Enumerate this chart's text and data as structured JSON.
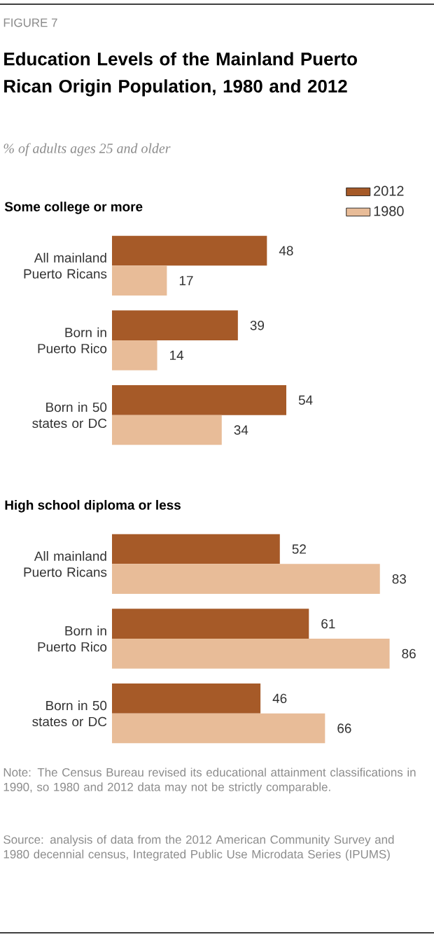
{
  "chart_data": [
    {
      "type": "other",
      "title": "Education Levels of the Mainland Puerto Rican Origin Population, 1980 and 2012",
      "subtitle": "% of adults ages 25 and older",
      "annotations": [
        "FIGURE 7"
      ]
    },
    {
      "type": "bar",
      "orientation": "horizontal",
      "title": "Some college or more",
      "categories": [
        "All mainland Puerto Ricans",
        "Born in Puerto Rico",
        "Born in 50 states or DC"
      ],
      "series": [
        {
          "name": "2012",
          "color": "#a65a28",
          "values": [
            48,
            39,
            54
          ]
        },
        {
          "name": "1980",
          "color": "#e8bc98",
          "values": [
            17,
            14,
            34
          ]
        }
      ],
      "data_labels": true,
      "legend": "top right",
      "tick_labels": "y",
      "grid": false
    },
    {
      "type": "bar",
      "orientation": "horizontal",
      "title": "High school diploma  or less",
      "categories": [
        "All mainland Puerto Ricans",
        "Born in Puerto Rico",
        "Born in 50 states or DC"
      ],
      "series": [
        {
          "color": "#a65a28",
          "values": [
            52,
            61,
            46
          ]
        },
        {
          "color": "#e8bc98",
          "values": [
            83,
            86,
            66
          ]
        }
      ],
      "data_labels": true,
      "legend": false,
      "tick_labels": "y",
      "grid": false,
      "annotations": [
        "Note: The Census Bureau revised its educational attainment classifications in 1990, so 1980 and 2012 data may not be strictly comparable.",
        "Source: analysis of data from the 2012 American Community Survey and 1980 decennial census, Integrated Public Use Microdata Series (IPUMS)"
      ]
    }
  ]
}
